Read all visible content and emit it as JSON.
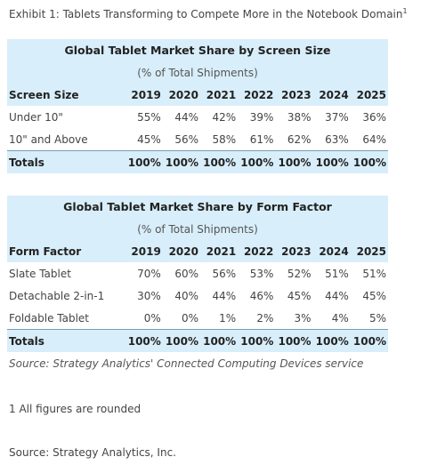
{
  "exhibit_title": "Exhibit 1: Tablets Transforming to Compete More in the Notebook Domain",
  "exhibit_footnote_mark": "1",
  "table1": {
    "title": "Global Tablet Market Share by Screen Size",
    "subtitle": "(% of Total Shipments)",
    "header": [
      "Screen Size",
      "2019",
      "2020",
      "2021",
      "2022",
      "2023",
      "2024",
      "2025"
    ],
    "rows": [
      [
        "Under 10\"",
        "55%",
        "44%",
        "42%",
        "39%",
        "38%",
        "37%",
        "36%"
      ],
      [
        "10\" and Above",
        "45%",
        "56%",
        "58%",
        "61%",
        "62%",
        "63%",
        "64%"
      ]
    ],
    "totals": [
      "Totals",
      "100%",
      "100%",
      "100%",
      "100%",
      "100%",
      "100%",
      "100%"
    ]
  },
  "table2": {
    "title": "Global Tablet Market Share by Form Factor",
    "subtitle": "(% of Total Shipments)",
    "header": [
      "Form Factor",
      "2019",
      "2020",
      "2021",
      "2022",
      "2023",
      "2024",
      "2025"
    ],
    "rows": [
      [
        "Slate Tablet",
        "70%",
        "60%",
        "56%",
        "53%",
        "52%",
        "51%",
        "51%"
      ],
      [
        "Detachable 2-in-1",
        "30%",
        "40%",
        "44%",
        "46%",
        "45%",
        "44%",
        "45%"
      ],
      [
        "Foldable Tablet",
        "0%",
        "0%",
        "1%",
        "2%",
        "3%",
        "4%",
        "5%"
      ]
    ],
    "totals": [
      "Totals",
      "100%",
      "100%",
      "100%",
      "100%",
      "100%",
      "100%",
      "100%"
    ]
  },
  "source_italic": "Source: Strategy Analytics' Connected Computing Devices service",
  "footnote": "1 All figures are rounded",
  "source": "Source: Strategy Analytics, Inc.",
  "colors": {
    "band": "#d8eefa",
    "rule": "#7a9cb4"
  }
}
